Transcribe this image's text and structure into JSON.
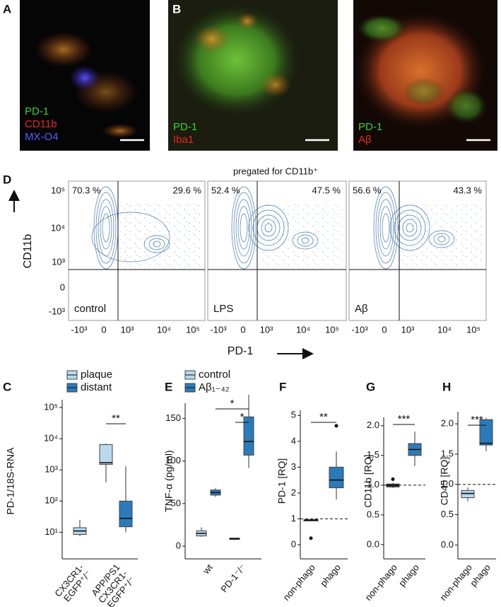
{
  "panel_labels": [
    "A",
    "B",
    "D",
    "C",
    "E",
    "F",
    "G",
    "H"
  ],
  "images": [
    {
      "channels": [
        "PD-1",
        "CD11b",
        "MX-O4"
      ]
    },
    {
      "channels": [
        "PD-1",
        "Iba1"
      ]
    },
    {
      "channels": [
        "PD-1",
        "Aβ"
      ]
    }
  ],
  "flow": {
    "title": "pregated for CD11b⁺",
    "y_label": "CD11b",
    "x_label": "PD-1",
    "y_ticks": [
      "10⁵",
      "10⁴",
      "10³",
      "0",
      "-10³"
    ],
    "x_ticks": [
      "-10³",
      "0",
      "10³",
      "10⁴",
      "10⁵"
    ],
    "samples": [
      {
        "name": "control",
        "quadrants": [
          "70.3 %",
          "29.6 %"
        ]
      },
      {
        "name": "LPS",
        "quadrants": [
          "52.4 %",
          "47.5 %"
        ]
      },
      {
        "name": "Aβ",
        "quadrants": [
          "56.6 %",
          "43.3 %"
        ]
      }
    ]
  },
  "chart_data": [
    {
      "type": "box",
      "y_label": "PD-1/18S-RNA",
      "log_y": true,
      "ylim": [
        1.4,
        178000
      ],
      "yticks": [
        {
          "value": 10,
          "label": "10¹"
        },
        {
          "value": 100,
          "label": "10²"
        },
        {
          "value": 1000,
          "label": "10³"
        },
        {
          "value": 10000,
          "label": "10⁴"
        },
        {
          "value": 100000,
          "label": "10⁵"
        }
      ],
      "categories": [
        "CX3CR1-\nEGFP⁺/⁻",
        "APP/PS1\nCX3CR1-\nEGFP⁺/⁻"
      ],
      "series": [
        {
          "name": "plaque",
          "color": "#b9d9ec",
          "values": [
            {
              "whislo": 7.5,
              "q1": 8.5,
              "med": 11,
              "q3": 14,
              "whishi": 25
            },
            {
              "whislo": 400,
              "q1": 1500,
              "med": 1700,
              "q3": 6500,
              "whishi": 7000
            }
          ]
        },
        {
          "name": "distant",
          "color": "#2b7bba",
          "values": [
            null,
            {
              "whislo": 10,
              "q1": 15,
              "med": 28,
              "q3": 100,
              "whishi": 1300
            }
          ]
        }
      ],
      "annotations": [
        "**"
      ]
    },
    {
      "type": "box",
      "y_label": "TNF-α (pg/ml)",
      "ylim": [
        -15,
        168
      ],
      "yticks": [
        0,
        50,
        100,
        150
      ],
      "categories": [
        "wt",
        "PD-1⁻/⁻"
      ],
      "series": [
        {
          "name": "control",
          "color": "#b9d9ec",
          "values": [
            {
              "whislo": 11,
              "q1": 12,
              "med": 15,
              "q3": 18,
              "whishi": 22
            },
            {
              "whislo": 7,
              "q1": 8,
              "med": 8.5,
              "q3": 9.5,
              "whishi": 10
            }
          ]
        },
        {
          "name": "Aβ₁₋₄₂",
          "color": "#2b7bba",
          "values": [
            {
              "whislo": 58,
              "q1": 60,
              "med": 63,
              "q3": 66,
              "whishi": 68
            },
            {
              "whislo": 92,
              "q1": 107,
              "med": 123,
              "q3": 152,
              "whishi": 178
            }
          ]
        }
      ],
      "annotations": [
        "*",
        "*"
      ]
    },
    {
      "type": "box",
      "y_label": "PD-1 [RQ]",
      "ylim": [
        -0.55,
        5.2
      ],
      "yticks": [
        0,
        1,
        2,
        3,
        4,
        5
      ],
      "reference_line": 1,
      "categories": [
        "non-phago",
        "phago"
      ],
      "series": [
        {
          "colors": [
            "#333333",
            "#2b7bba"
          ],
          "values": [
            {
              "whislo": 0.9,
              "q1": 0.92,
              "med": 0.95,
              "q3": 0.97,
              "whishi": 1.0,
              "fliers": [
                0.25
              ]
            },
            {
              "whislo": 1.75,
              "q1": 2.2,
              "med": 2.5,
              "q3": 3.0,
              "whishi": 3.6,
              "fliers": [
                4.6
              ]
            }
          ]
        }
      ],
      "annotations": [
        "**"
      ]
    },
    {
      "type": "box",
      "y_label": "CD11b [RQ]",
      "ylim": [
        -0.24,
        2.14
      ],
      "reference_line": 1,
      "yticks": [
        {
          "value": 0,
          "label": "0.0"
        },
        {
          "value": 0.5,
          "label": "0.5"
        },
        {
          "value": 1,
          "label": "1.0"
        },
        {
          "value": 1.5,
          "label": "1.5"
        },
        {
          "value": 2,
          "label": "2.0"
        }
      ],
      "categories": [
        "non-phago",
        "phago"
      ],
      "series": [
        {
          "colors": [
            "#333333",
            "#2b7bba"
          ],
          "values": [
            {
              "whislo": 0.95,
              "q1": 0.97,
              "med": 1.0,
              "q3": 1.02,
              "whishi": 1.04,
              "fliers": [
                1.1
              ]
            },
            {
              "whislo": 1.32,
              "q1": 1.5,
              "med": 1.6,
              "q3": 1.7,
              "whishi": 1.9
            }
          ]
        }
      ],
      "annotations": [
        "***"
      ]
    },
    {
      "type": "box",
      "y_label": "CD45 [RQ]",
      "ylim": [
        -0.23,
        2.2
      ],
      "reference_line": 1,
      "yticks": [
        {
          "value": 0,
          "label": "0.0"
        },
        {
          "value": 0.5,
          "label": "0.5"
        },
        {
          "value": 1,
          "label": "1.0"
        },
        {
          "value": 1.5,
          "label": "1.5"
        },
        {
          "value": 2,
          "label": "2.0"
        }
      ],
      "categories": [
        "non-phago",
        "phago"
      ],
      "series": [
        {
          "colors": [
            "#b9d9ec",
            "#2b7bba"
          ],
          "values": [
            {
              "whislo": 0.72,
              "q1": 0.78,
              "med": 0.85,
              "q3": 0.9,
              "whishi": 0.95
            },
            {
              "whislo": 1.55,
              "q1": 1.65,
              "med": 1.68,
              "q3": 2.07,
              "whishi": 2.1
            }
          ]
        }
      ],
      "annotations": [
        "***"
      ]
    }
  ]
}
